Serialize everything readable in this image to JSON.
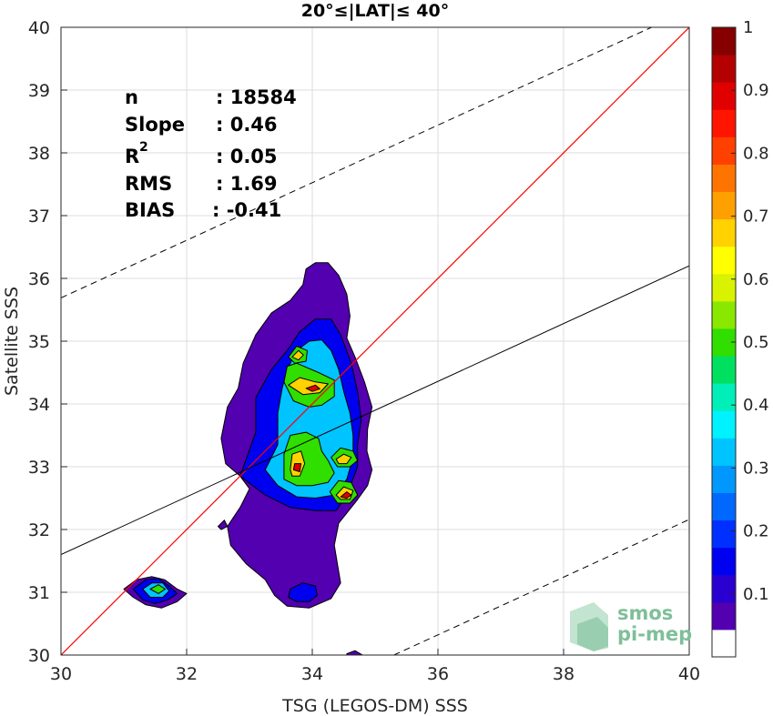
{
  "chart_data": {
    "type": "heatmap",
    "title": "20°≤|LAT|≤ 40°",
    "xlabel": "TSG (LEGOS-DM) SSS",
    "ylabel": "Satellite SSS",
    "xlim": [
      30,
      40
    ],
    "ylim": [
      30,
      40
    ],
    "xticks": [
      "30",
      "32",
      "34",
      "36",
      "38",
      "40"
    ],
    "yticks": [
      "30",
      "31",
      "32",
      "33",
      "34",
      "35",
      "36",
      "37",
      "38",
      "39",
      "40"
    ],
    "grid": true,
    "stats": [
      {
        "label": "n",
        "value": ": 18584"
      },
      {
        "label": "Slope",
        "value": ": 0.46"
      },
      {
        "label": "R",
        "sup": "2",
        "value": ": 0.05"
      },
      {
        "label": "RMS",
        "value": ": 1.69"
      },
      {
        "label": "BIAS",
        "value": ": -0.41"
      }
    ],
    "lines": {
      "identity": {
        "x": [
          30,
          40
        ],
        "y": [
          30,
          40
        ],
        "color": "#ff0000"
      },
      "regression": {
        "x": [
          30,
          40
        ],
        "y": [
          31.6,
          36.2
        ],
        "color": "#000000"
      },
      "rms_upper": {
        "x": [
          30,
          39.4
        ],
        "y": [
          35.69,
          40.0
        ],
        "color": "#000000"
      },
      "rms_lower": {
        "x": [
          35.3,
          40
        ],
        "y": [
          30.0,
          32.16
        ],
        "color": "#000000"
      }
    },
    "contours": [
      {
        "level": 0.05,
        "polygon": [
          [
            31.0,
            31.05
          ],
          [
            31.2,
            31.2
          ],
          [
            31.45,
            31.25
          ],
          [
            31.65,
            31.2
          ],
          [
            31.85,
            31.05
          ],
          [
            32.0,
            30.98
          ],
          [
            31.85,
            30.85
          ],
          [
            31.6,
            30.75
          ],
          [
            31.35,
            30.8
          ],
          [
            31.15,
            30.92
          ]
        ]
      },
      {
        "level": 0.05,
        "polygon": [
          [
            32.5,
            32.05
          ],
          [
            32.6,
            32.15
          ],
          [
            32.65,
            32.05
          ],
          [
            32.55,
            32.0
          ]
        ]
      },
      {
        "level": 0.05,
        "polygon": [
          [
            33.0,
            32.65
          ],
          [
            32.85,
            32.35
          ],
          [
            32.65,
            32.05
          ],
          [
            32.7,
            31.75
          ],
          [
            32.95,
            31.45
          ],
          [
            33.25,
            31.2
          ],
          [
            33.4,
            30.95
          ],
          [
            33.6,
            30.78
          ],
          [
            33.95,
            30.75
          ],
          [
            34.3,
            30.9
          ],
          [
            34.45,
            31.15
          ],
          [
            34.4,
            31.45
          ],
          [
            34.35,
            31.75
          ],
          [
            34.42,
            32.1
          ],
          [
            34.7,
            32.45
          ],
          [
            34.88,
            32.7
          ],
          [
            34.95,
            32.95
          ],
          [
            34.87,
            33.25
          ],
          [
            34.88,
            33.6
          ],
          [
            34.95,
            33.95
          ],
          [
            34.83,
            34.35
          ],
          [
            34.68,
            34.75
          ],
          [
            34.55,
            35.05
          ],
          [
            34.6,
            35.4
          ],
          [
            34.55,
            35.75
          ],
          [
            34.42,
            36.05
          ],
          [
            34.25,
            36.25
          ],
          [
            34.05,
            36.25
          ],
          [
            33.9,
            36.15
          ],
          [
            33.85,
            35.9
          ],
          [
            33.65,
            35.65
          ],
          [
            33.35,
            35.45
          ],
          [
            33.1,
            35.1
          ],
          [
            32.9,
            34.65
          ],
          [
            32.82,
            34.25
          ],
          [
            32.65,
            33.95
          ],
          [
            32.55,
            33.45
          ],
          [
            32.62,
            33.05
          ],
          [
            32.85,
            32.85
          ]
        ]
      },
      {
        "level": 0.05,
        "polygon": [
          [
            34.55,
            30.02
          ],
          [
            34.68,
            30.07
          ],
          [
            34.8,
            30.0
          ],
          [
            34.55,
            30.0
          ]
        ]
      },
      {
        "level": 0.15,
        "polygon": [
          [
            31.15,
            31.05
          ],
          [
            31.35,
            31.2
          ],
          [
            31.55,
            31.22
          ],
          [
            31.72,
            31.1
          ],
          [
            31.85,
            30.98
          ],
          [
            31.7,
            30.88
          ],
          [
            31.5,
            30.82
          ],
          [
            31.3,
            30.88
          ]
        ]
      },
      {
        "level": 0.15,
        "polygon": [
          [
            33.65,
            31.05
          ],
          [
            33.85,
            31.15
          ],
          [
            34.05,
            31.1
          ],
          [
            34.08,
            30.95
          ],
          [
            33.95,
            30.85
          ],
          [
            33.75,
            30.85
          ],
          [
            33.62,
            30.92
          ]
        ]
      },
      {
        "level": 0.15,
        "polygon": [
          [
            32.85,
            32.85
          ],
          [
            33.1,
            33.55
          ],
          [
            33.1,
            34.1
          ],
          [
            33.35,
            34.55
          ],
          [
            33.6,
            34.85
          ],
          [
            33.8,
            35.15
          ],
          [
            34.05,
            35.35
          ],
          [
            34.3,
            35.35
          ],
          [
            34.45,
            35.1
          ],
          [
            34.62,
            34.65
          ],
          [
            34.72,
            34.2
          ],
          [
            34.78,
            33.75
          ],
          [
            34.72,
            33.35
          ],
          [
            34.72,
            33.0
          ],
          [
            34.55,
            32.55
          ],
          [
            34.38,
            32.3
          ],
          [
            34.05,
            32.3
          ],
          [
            33.65,
            32.35
          ],
          [
            33.25,
            32.55
          ]
        ]
      },
      {
        "level": 0.3,
        "polygon": [
          [
            31.3,
            31.05
          ],
          [
            31.45,
            31.15
          ],
          [
            31.62,
            31.15
          ],
          [
            31.72,
            31.02
          ],
          [
            31.62,
            30.92
          ],
          [
            31.42,
            30.92
          ]
        ]
      },
      {
        "level": 0.3,
        "polygon": [
          [
            33.25,
            32.95
          ],
          [
            33.45,
            33.35
          ],
          [
            33.45,
            33.85
          ],
          [
            33.52,
            34.25
          ],
          [
            33.6,
            34.55
          ],
          [
            33.75,
            34.85
          ],
          [
            33.95,
            35.0
          ],
          [
            34.15,
            35.02
          ],
          [
            34.3,
            34.85
          ],
          [
            34.42,
            34.55
          ],
          [
            34.5,
            34.2
          ],
          [
            34.6,
            33.85
          ],
          [
            34.65,
            33.5
          ],
          [
            34.65,
            33.15
          ],
          [
            34.55,
            32.8
          ],
          [
            34.35,
            32.55
          ],
          [
            34.05,
            32.5
          ],
          [
            33.75,
            32.52
          ],
          [
            33.45,
            32.7
          ]
        ]
      },
      {
        "level": 0.5,
        "polygon": [
          [
            31.42,
            31.05
          ],
          [
            31.55,
            31.12
          ],
          [
            31.66,
            31.05
          ],
          [
            31.55,
            30.98
          ]
        ]
      },
      {
        "level": 0.5,
        "polygon": [
          [
            33.55,
            32.8
          ],
          [
            33.55,
            33.2
          ],
          [
            33.65,
            33.5
          ],
          [
            33.9,
            33.55
          ],
          [
            34.1,
            33.45
          ],
          [
            34.15,
            33.25
          ],
          [
            34.25,
            33.1
          ],
          [
            34.35,
            32.9
          ],
          [
            34.25,
            32.75
          ],
          [
            34.0,
            32.7
          ],
          [
            33.75,
            32.7
          ]
        ]
      },
      {
        "level": 0.5,
        "polygon": [
          [
            33.55,
            34.35
          ],
          [
            33.6,
            34.6
          ],
          [
            33.75,
            34.65
          ],
          [
            34.1,
            34.5
          ],
          [
            34.35,
            34.38
          ],
          [
            34.35,
            34.12
          ],
          [
            34.15,
            33.98
          ],
          [
            33.95,
            33.95
          ],
          [
            33.7,
            34.05
          ]
        ]
      },
      {
        "level": 0.5,
        "polygon": [
          [
            33.62,
            34.75
          ],
          [
            33.75,
            34.92
          ],
          [
            33.92,
            34.85
          ],
          [
            33.9,
            34.68
          ],
          [
            33.72,
            34.65
          ]
        ]
      },
      {
        "level": 0.5,
        "polygon": [
          [
            34.3,
            33.15
          ],
          [
            34.45,
            33.3
          ],
          [
            34.65,
            33.25
          ],
          [
            34.72,
            33.1
          ],
          [
            34.6,
            33.0
          ],
          [
            34.4,
            33.0
          ]
        ]
      },
      {
        "level": 0.5,
        "polygon": [
          [
            34.28,
            32.6
          ],
          [
            34.42,
            32.78
          ],
          [
            34.62,
            32.75
          ],
          [
            34.72,
            32.55
          ],
          [
            34.6,
            32.42
          ],
          [
            34.4,
            32.42
          ]
        ]
      },
      {
        "level": 0.7,
        "polygon": [
          [
            33.65,
            32.95
          ],
          [
            33.68,
            33.2
          ],
          [
            33.82,
            33.25
          ],
          [
            33.88,
            33.05
          ],
          [
            33.8,
            32.85
          ],
          [
            33.68,
            32.85
          ]
        ]
      },
      {
        "level": 0.7,
        "polygon": [
          [
            33.62,
            34.3
          ],
          [
            33.8,
            34.42
          ],
          [
            34.05,
            34.35
          ],
          [
            34.25,
            34.32
          ],
          [
            34.12,
            34.18
          ],
          [
            33.85,
            34.15
          ]
        ]
      },
      {
        "level": 0.7,
        "polygon": [
          [
            33.68,
            34.75
          ],
          [
            33.78,
            34.85
          ],
          [
            33.86,
            34.78
          ],
          [
            33.78,
            34.7
          ]
        ]
      },
      {
        "level": 0.7,
        "polygon": [
          [
            34.38,
            33.12
          ],
          [
            34.5,
            33.2
          ],
          [
            34.62,
            33.15
          ],
          [
            34.55,
            33.05
          ],
          [
            34.42,
            33.05
          ]
        ]
      },
      {
        "level": 0.7,
        "polygon": [
          [
            34.38,
            32.55
          ],
          [
            34.5,
            32.68
          ],
          [
            34.65,
            32.62
          ],
          [
            34.6,
            32.48
          ],
          [
            34.45,
            32.48
          ]
        ]
      },
      {
        "level": 0.9,
        "polygon": [
          [
            33.7,
            32.95
          ],
          [
            33.72,
            33.05
          ],
          [
            33.82,
            33.05
          ],
          [
            33.8,
            32.92
          ]
        ]
      },
      {
        "level": 0.9,
        "polygon": [
          [
            34.45,
            32.52
          ],
          [
            34.55,
            32.6
          ],
          [
            34.62,
            32.55
          ],
          [
            34.55,
            32.5
          ]
        ]
      },
      {
        "level": 0.9,
        "polygon": [
          [
            33.9,
            34.25
          ],
          [
            34.05,
            34.3
          ],
          [
            34.12,
            34.24
          ],
          [
            34.0,
            34.2
          ]
        ]
      }
    ],
    "colorbar": {
      "range": [
        0,
        1
      ],
      "ticks": [
        "0.1",
        "0.2",
        "0.3",
        "0.4",
        "0.5",
        "0.6",
        "0.7",
        "0.8",
        "0.9",
        "1"
      ],
      "colors": [
        "#ffffff",
        "#5200b0",
        "#2a00d0",
        "#0000f0",
        "#0030ff",
        "#0068ff",
        "#0098ff",
        "#00c4ff",
        "#00f2ff",
        "#00efb8",
        "#00e060",
        "#30de00",
        "#8ae800",
        "#d8f200",
        "#ffff00",
        "#ffd200",
        "#ff9f00",
        "#ff7400",
        "#ff4000",
        "#ff1400",
        "#e00000",
        "#b40000",
        "#860000"
      ]
    },
    "logo": {
      "line1": "smos",
      "line2": "pi-mep"
    }
  }
}
